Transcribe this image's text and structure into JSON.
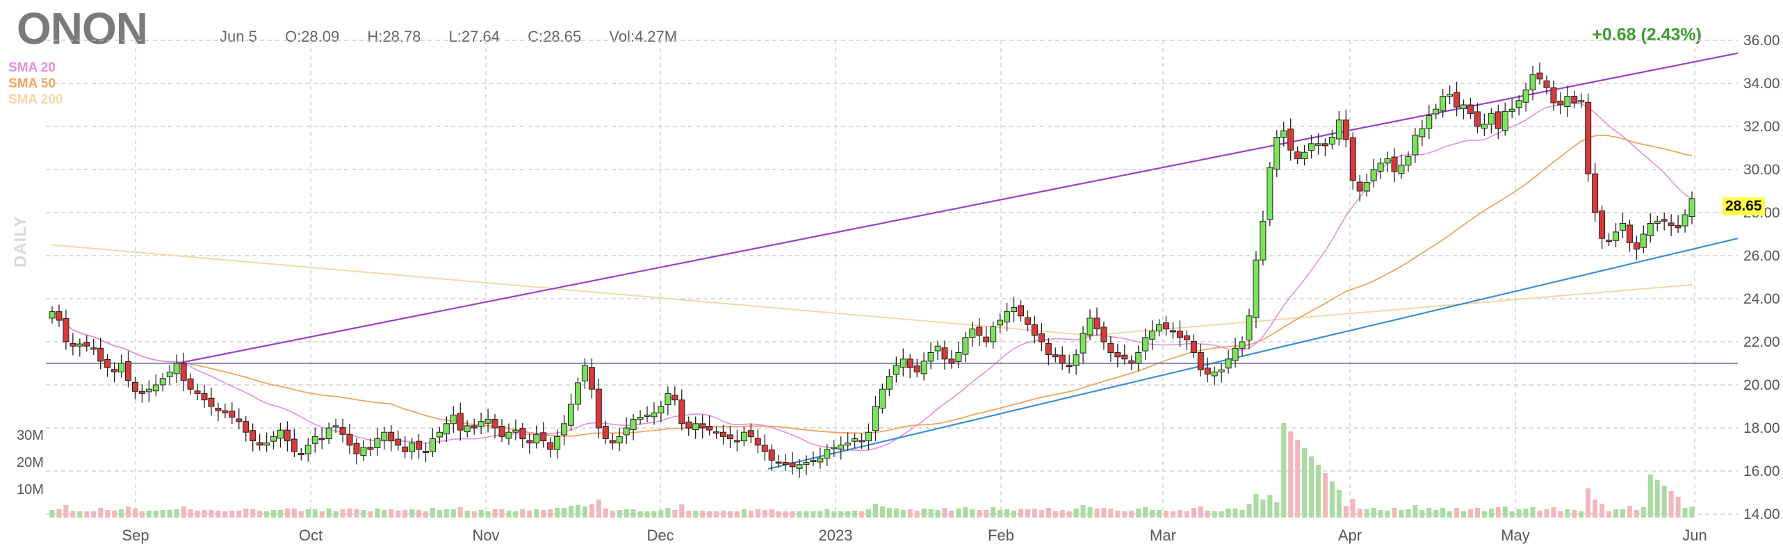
{
  "header": {
    "ticker": "ONON",
    "date": "Jun 5",
    "open": "O:28.09",
    "high": "H:28.78",
    "low": "L:27.64",
    "close": "C:28.65",
    "volume": "Vol:4.27M",
    "change": "+0.68 (2.43%)"
  },
  "legend": [
    {
      "label": "SMA 20",
      "color": "#e58ee0"
    },
    {
      "label": "SMA 50",
      "color": "#f2a45c"
    },
    {
      "label": "SMA 200",
      "color": "#f5d6a4"
    }
  ],
  "side_label": "DAILY",
  "last_price": "28.65",
  "colors": {
    "up": "#7be35a",
    "down": "#d83a3a",
    "upper_trend": "#9b3fc9",
    "lower_trend": "#3a8fd8",
    "horizontal": "#6a6aa8",
    "vol_up": "#a9dca0",
    "vol_down": "#f2b7bc"
  },
  "chart_data": {
    "type": "candlestick",
    "y_axis": {
      "ticks": [
        "14.00",
        "16.00",
        "18.00",
        "20.00",
        "22.00",
        "24.00",
        "26.00",
        "28.00",
        "30.00",
        "32.00",
        "34.00",
        "36.00"
      ],
      "range": [
        14,
        36
      ]
    },
    "x_axis": {
      "ticks": [
        "Sep",
        "Oct",
        "Nov",
        "Dec",
        "2023",
        "Feb",
        "Mar",
        "Apr",
        "May",
        "Jun"
      ]
    },
    "volume_axis": {
      "ticks": [
        "30M",
        "20M",
        "10M"
      ]
    },
    "close": [
      23.4,
      23.0,
      22.0,
      21.8,
      21.9,
      21.8,
      21.7,
      21.1,
      20.8,
      20.6,
      21.0,
      20.2,
      19.7,
      19.6,
      19.8,
      20.0,
      20.3,
      20.6,
      21.0,
      20.2,
      19.8,
      19.6,
      19.3,
      19.0,
      18.8,
      18.7,
      18.5,
      18.3,
      17.8,
      17.4,
      17.2,
      17.3,
      17.6,
      17.9,
      17.4,
      16.9,
      16.8,
      17.2,
      17.6,
      17.5,
      18.0,
      18.1,
      17.7,
      17.2,
      16.8,
      17.1,
      17.0,
      17.5,
      17.8,
      17.4,
      17.2,
      16.9,
      17.3,
      17.0,
      16.9,
      17.5,
      17.8,
      18.2,
      18.6,
      17.9,
      18.1,
      18.0,
      18.3,
      18.4,
      18.0,
      17.6,
      17.8,
      17.9,
      17.5,
      17.3,
      17.7,
      17.4,
      17.0,
      17.6,
      18.2,
      19.1,
      20.1,
      20.9,
      19.8,
      18.0,
      17.5,
      17.3,
      17.6,
      18.0,
      18.4,
      18.5,
      18.6,
      18.7,
      19.0,
      19.6,
      19.3,
      18.2,
      18.0,
      18.2,
      18.0,
      17.9,
      17.8,
      17.6,
      17.5,
      17.4,
      17.8,
      17.6,
      17.2,
      16.9,
      16.5,
      16.4,
      16.3,
      16.2,
      16.3,
      16.4,
      16.5,
      16.6,
      17.0,
      17.1,
      17.2,
      17.3,
      17.5,
      17.4,
      17.8,
      19.0,
      19.8,
      20.4,
      20.9,
      21.2,
      20.8,
      20.6,
      21.1,
      21.5,
      21.8,
      21.2,
      21.0,
      21.5,
      22.2,
      22.6,
      22.3,
      22.0,
      22.7,
      23.0,
      23.4,
      23.6,
      23.2,
      22.8,
      22.3,
      22.0,
      21.4,
      21.3,
      21.0,
      20.9,
      21.4,
      22.4,
      23.1,
      22.6,
      22.0,
      21.5,
      21.3,
      21.2,
      21.0,
      21.5,
      22.2,
      22.5,
      22.8,
      22.6,
      22.5,
      22.2,
      22.1,
      21.5,
      20.7,
      20.5,
      20.6,
      20.7,
      21.2,
      21.7,
      22.0,
      23.2,
      25.8,
      27.6,
      30.1,
      31.5,
      31.8,
      30.9,
      30.5,
      30.8,
      31.2,
      31.2,
      31.1,
      31.5,
      32.3,
      31.4,
      29.5,
      29.0,
      29.4,
      30.0,
      30.3,
      30.5,
      29.9,
      30.2,
      30.6,
      31.6,
      31.9,
      32.5,
      32.8,
      33.4,
      33.5,
      32.9,
      33.0,
      32.6,
      32.0,
      32.1,
      32.6,
      31.9,
      32.7,
      32.8,
      33.2,
      33.7,
      34.4,
      34.2,
      33.8,
      33.1,
      33.0,
      33.4,
      33.1,
      33.2,
      29.8,
      28.0,
      26.8,
      26.7,
      27.1,
      27.5,
      26.6,
      26.3,
      27.0,
      27.5,
      27.6,
      27.6,
      27.4,
      27.3,
      27.9,
      28.65
    ]
  }
}
